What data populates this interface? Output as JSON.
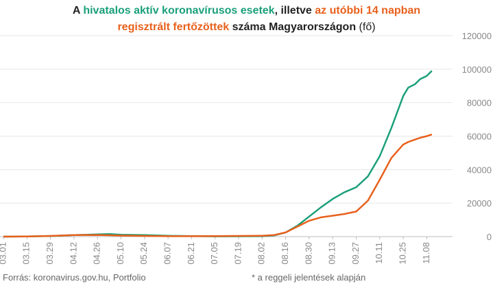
{
  "title": {
    "p1": "A ",
    "green": "hivatalos aktív koronavírusos esetek",
    "p2": ", illetve ",
    "orange1": "az utóbbi 14 napban",
    "orange2": "regisztrált fertőzöttek",
    "p3": " száma Magyarországon",
    "p4": " (fő)"
  },
  "footer": {
    "source": "Forrás: koronavirus.gov.hu, Portfolio",
    "note": "* a reggeli jelentések alapján"
  },
  "colors": {
    "active": "#1a9f7a",
    "recent14": "#e8601c",
    "grid": "#e6e6e6",
    "axis": "#bbbbbb",
    "text": "#888888"
  },
  "chart_data": {
    "type": "line",
    "x_ticks": [
      "03.01",
      "03.15",
      "03.29",
      "04.12",
      "04.26",
      "05.10",
      "05.24",
      "06.07",
      "06.21",
      "07.05",
      "07.19",
      "08.02",
      "08.16",
      "08.30",
      "09.13",
      "09.27",
      "10.11",
      "10.25",
      "11.08"
    ],
    "y_ticks": [
      "0",
      "20000",
      "40000",
      "60000",
      "80000",
      "100000",
      "120000"
    ],
    "ylim": [
      0,
      120000
    ],
    "grid": "horizontal",
    "series": [
      {
        "key": "active",
        "x": [
          0,
          14,
          28,
          42,
          56,
          63,
          70,
          84,
          98,
          112,
          126,
          140,
          154,
          161,
          168,
          175,
          182,
          189,
          196,
          203,
          210,
          217,
          224,
          231,
          238,
          241,
          245,
          248,
          252,
          255
        ],
        "values": [
          0,
          100,
          350,
          900,
          1300,
          1500,
          1100,
          900,
          500,
          300,
          150,
          200,
          250,
          700,
          2500,
          6500,
          12000,
          17500,
          22500,
          26500,
          29500,
          36000,
          48000,
          65000,
          84000,
          89000,
          91000,
          94000,
          96000,
          99000
        ]
      },
      {
        "key": "recent14",
        "x": [
          0,
          14,
          28,
          42,
          56,
          63,
          70,
          84,
          98,
          112,
          126,
          140,
          154,
          161,
          168,
          175,
          182,
          189,
          196,
          203,
          210,
          217,
          224,
          231,
          238,
          241,
          245,
          248,
          252,
          255
        ],
        "values": [
          0,
          100,
          400,
          900,
          1000,
          800,
          600,
          400,
          250,
          250,
          300,
          400,
          500,
          900,
          2500,
          6000,
          9500,
          11500,
          12500,
          13500,
          15000,
          21500,
          34000,
          47000,
          55000,
          56500,
          58000,
          59000,
          60000,
          61000
        ]
      }
    ]
  }
}
